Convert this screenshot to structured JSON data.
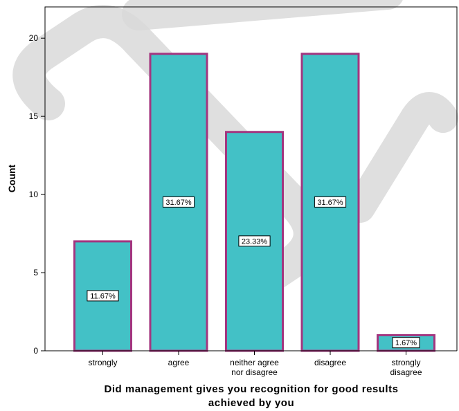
{
  "chart_data": {
    "type": "bar",
    "categories": [
      [
        "strongly"
      ],
      [
        "agree"
      ],
      [
        "neither agree",
        "nor disagree"
      ],
      [
        "disagree"
      ],
      [
        "strongly",
        "disagree"
      ]
    ],
    "values": [
      7,
      19,
      14,
      19,
      1
    ],
    "data_labels": [
      "11.67%",
      "31.67%",
      "23.33%",
      "31.67%",
      "1.67%"
    ],
    "xlabel_lines": [
      "Did management gives you recognition for good results",
      "achieved by you"
    ],
    "ylabel": "Count",
    "ylim": [
      0,
      22
    ],
    "yticks": [
      0,
      5,
      10,
      15,
      20
    ],
    "grid": false,
    "colors": {
      "bar_fill": "#43c1c6",
      "bar_stroke": "#a3357f",
      "watermark": "#d9d9d9"
    }
  }
}
